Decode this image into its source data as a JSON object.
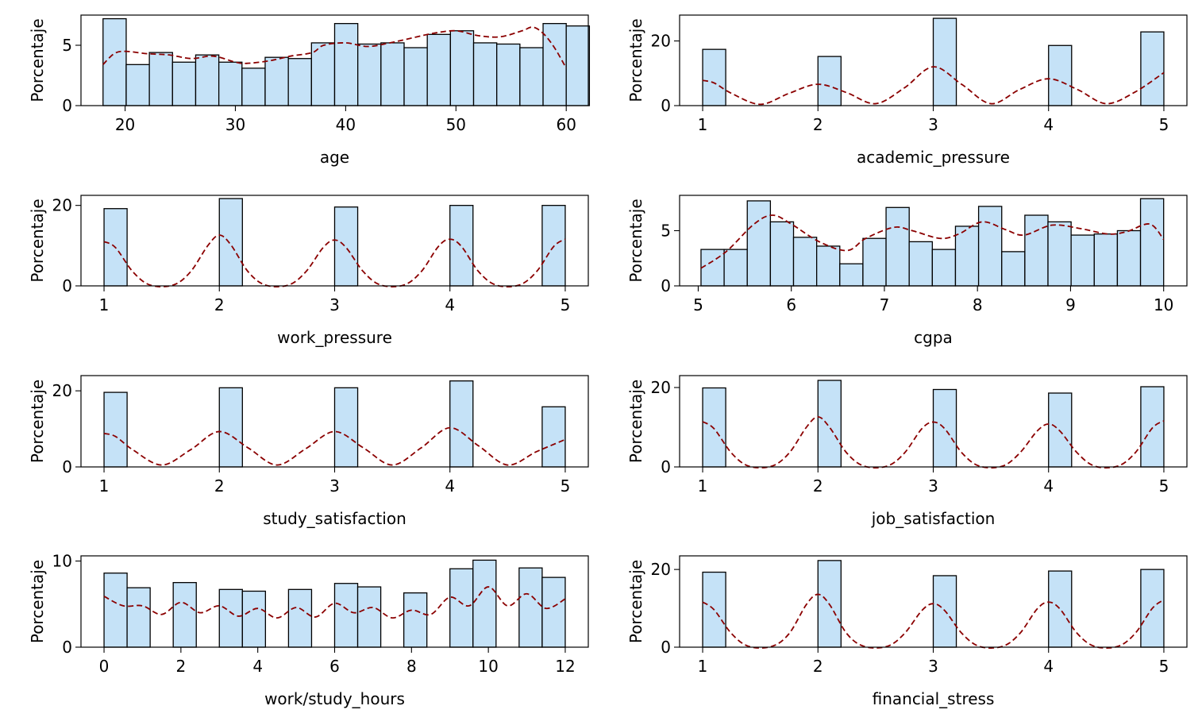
{
  "colors": {
    "bar_fill": "#c5e2f7",
    "bar_edge": "#000000",
    "kde": "#8b0000"
  },
  "chart_data": [
    {
      "type": "bar",
      "variable": "age",
      "xlabel": "age",
      "ylabel": "Porcentaje",
      "xlim": [
        16.0,
        62.0
      ],
      "ylim": [
        0,
        7.5
      ],
      "xticks": [
        20,
        30,
        40,
        50,
        60
      ],
      "yticks": [
        0,
        5
      ],
      "bin_start": 18,
      "bin_width": 2.1,
      "values": [
        7.2,
        3.4,
        4.4,
        3.6,
        4.2,
        3.6,
        3.1,
        4.0,
        3.9,
        5.2,
        6.8,
        5.1,
        5.2,
        4.8,
        5.9,
        6.2,
        5.2,
        5.1,
        4.8,
        6.8,
        6.6
      ],
      "kde": [
        [
          18,
          3.4
        ],
        [
          19,
          4.3
        ],
        [
          20,
          4.5
        ],
        [
          22,
          4.3
        ],
        [
          24,
          4.2
        ],
        [
          26,
          3.9
        ],
        [
          28,
          4.1
        ],
        [
          30,
          3.6
        ],
        [
          31,
          3.5
        ],
        [
          33,
          3.7
        ],
        [
          35,
          4.1
        ],
        [
          37,
          4.4
        ],
        [
          38,
          5.0
        ],
        [
          40,
          5.2
        ],
        [
          42,
          4.9
        ],
        [
          44,
          5.2
        ],
        [
          46,
          5.6
        ],
        [
          48,
          6.0
        ],
        [
          50,
          6.2
        ],
        [
          52,
          5.8
        ],
        [
          54,
          5.7
        ],
        [
          56,
          6.2
        ],
        [
          57,
          6.5
        ],
        [
          58,
          5.9
        ],
        [
          59,
          4.7
        ],
        [
          60,
          3.1
        ]
      ]
    },
    {
      "type": "bar",
      "variable": "academic_pressure",
      "xlabel": "academic_pressure",
      "ylabel": "Porcentaje",
      "xlim": [
        0.8,
        5.2
      ],
      "ylim": [
        0,
        28
      ],
      "xticks": [
        1,
        2,
        3,
        4,
        5
      ],
      "yticks": [
        0,
        20
      ],
      "bins": [
        {
          "x": 1,
          "value": 17.4
        },
        {
          "x": 2,
          "value": 15.2
        },
        {
          "x": 3,
          "value": 27.0
        },
        {
          "x": 4,
          "value": 18.6
        },
        {
          "x": 5,
          "value": 22.8
        }
      ],
      "bar_width": 0.2,
      "bar_align": "left-except-last",
      "kde": [
        [
          1,
          7.8
        ],
        [
          1.1,
          7.0
        ],
        [
          1.25,
          3.8
        ],
        [
          1.5,
          0.4
        ],
        [
          1.75,
          3.8
        ],
        [
          2,
          6.6
        ],
        [
          2.25,
          4.0
        ],
        [
          2.5,
          0.6
        ],
        [
          2.75,
          5.5
        ],
        [
          3,
          12.0
        ],
        [
          3.25,
          6.5
        ],
        [
          3.5,
          0.6
        ],
        [
          3.75,
          5.0
        ],
        [
          4,
          8.3
        ],
        [
          4.25,
          5.0
        ],
        [
          4.5,
          0.6
        ],
        [
          4.75,
          4.2
        ],
        [
          5,
          10.2
        ]
      ]
    },
    {
      "type": "bar",
      "variable": "work_pressure",
      "xlabel": "work_pressure",
      "ylabel": "Porcentaje",
      "xlim": [
        0.8,
        5.2
      ],
      "ylim": [
        0,
        22.5
      ],
      "xticks": [
        1,
        2,
        3,
        4,
        5
      ],
      "yticks": [
        0,
        20
      ],
      "bins": [
        {
          "x": 1,
          "value": 19.2
        },
        {
          "x": 2,
          "value": 21.7
        },
        {
          "x": 3,
          "value": 19.6
        },
        {
          "x": 4,
          "value": 20.0
        },
        {
          "x": 5,
          "value": 20.0
        }
      ],
      "bar_width": 0.2,
      "bar_align": "left-except-last",
      "kde": [
        [
          1,
          11.0
        ],
        [
          1.1,
          9.5
        ],
        [
          1.25,
          3.5
        ],
        [
          1.4,
          0.2
        ],
        [
          1.6,
          0.2
        ],
        [
          1.75,
          3.5
        ],
        [
          1.9,
          10.0
        ],
        [
          2,
          12.6
        ],
        [
          2.1,
          10.2
        ],
        [
          2.25,
          3.5
        ],
        [
          2.4,
          0.2
        ],
        [
          2.6,
          0.2
        ],
        [
          2.75,
          3.5
        ],
        [
          2.9,
          9.5
        ],
        [
          3,
          11.4
        ],
        [
          3.1,
          9.5
        ],
        [
          3.25,
          3.5
        ],
        [
          3.4,
          0.2
        ],
        [
          3.6,
          0.2
        ],
        [
          3.75,
          3.5
        ],
        [
          3.9,
          9.8
        ],
        [
          4,
          11.6
        ],
        [
          4.1,
          9.8
        ],
        [
          4.25,
          3.5
        ],
        [
          4.4,
          0.2
        ],
        [
          4.6,
          0.2
        ],
        [
          4.75,
          3.5
        ],
        [
          4.9,
          9.8
        ],
        [
          5,
          11.6
        ]
      ]
    },
    {
      "type": "bar",
      "variable": "cgpa",
      "xlabel": "cgpa",
      "ylabel": "Porcentaje",
      "xlim": [
        4.8,
        10.25
      ],
      "ylim": [
        0,
        8.2
      ],
      "xticks": [
        5,
        6,
        7,
        8,
        9,
        10
      ],
      "yticks": [
        0,
        5
      ],
      "bin_start": 5.03,
      "bin_width": 0.2485,
      "values": [
        3.3,
        3.3,
        7.7,
        5.8,
        4.4,
        3.6,
        2.0,
        4.3,
        7.1,
        4.0,
        3.3,
        5.4,
        7.2,
        3.1,
        6.4,
        5.8,
        4.6,
        4.7,
        5.0,
        7.9
      ],
      "kde": [
        [
          5.03,
          1.6
        ],
        [
          5.3,
          3.1
        ],
        [
          5.6,
          5.6
        ],
        [
          5.8,
          6.4
        ],
        [
          6.0,
          5.6
        ],
        [
          6.3,
          4.0
        ],
        [
          6.6,
          3.2
        ],
        [
          6.8,
          4.3
        ],
        [
          7.1,
          5.3
        ],
        [
          7.3,
          5.0
        ],
        [
          7.6,
          4.3
        ],
        [
          7.8,
          4.7
        ],
        [
          8.05,
          5.8
        ],
        [
          8.3,
          5.1
        ],
        [
          8.5,
          4.6
        ],
        [
          8.8,
          5.5
        ],
        [
          9.1,
          5.2
        ],
        [
          9.4,
          4.7
        ],
        [
          9.6,
          4.9
        ],
        [
          9.85,
          5.6
        ],
        [
          10.0,
          4.2
        ]
      ]
    },
    {
      "type": "bar",
      "variable": "study_satisfaction",
      "xlabel": "study_satisfaction",
      "ylabel": "Porcentaje",
      "xlim": [
        0.8,
        5.2
      ],
      "ylim": [
        0,
        24
      ],
      "xticks": [
        1,
        2,
        3,
        4,
        5
      ],
      "yticks": [
        0,
        20
      ],
      "bins": [
        {
          "x": 1,
          "value": 19.6
        },
        {
          "x": 2,
          "value": 20.8
        },
        {
          "x": 3,
          "value": 20.8
        },
        {
          "x": 4,
          "value": 22.6
        },
        {
          "x": 5,
          "value": 15.8
        }
      ],
      "bar_width": 0.2,
      "bar_align": "left-except-last",
      "kde": [
        [
          1,
          8.8
        ],
        [
          1.1,
          8.0
        ],
        [
          1.25,
          4.5
        ],
        [
          1.5,
          0.5
        ],
        [
          1.75,
          4.5
        ],
        [
          2,
          9.3
        ],
        [
          2.25,
          5.0
        ],
        [
          2.5,
          0.5
        ],
        [
          2.75,
          4.8
        ],
        [
          3,
          9.3
        ],
        [
          3.25,
          5.0
        ],
        [
          3.5,
          0.5
        ],
        [
          3.75,
          5.0
        ],
        [
          4,
          10.3
        ],
        [
          4.25,
          5.5
        ],
        [
          4.5,
          0.5
        ],
        [
          4.75,
          4.0
        ],
        [
          5,
          7.2
        ]
      ]
    },
    {
      "type": "bar",
      "variable": "job_satisfaction",
      "xlabel": "job_satisfaction",
      "ylabel": "Porcentaje",
      "xlim": [
        0.8,
        5.2
      ],
      "ylim": [
        0,
        23
      ],
      "xticks": [
        1,
        2,
        3,
        4,
        5
      ],
      "yticks": [
        0,
        20
      ],
      "bins": [
        {
          "x": 1,
          "value": 19.9
        },
        {
          "x": 2,
          "value": 21.8
        },
        {
          "x": 3,
          "value": 19.5
        },
        {
          "x": 4,
          "value": 18.6
        },
        {
          "x": 5,
          "value": 20.2
        }
      ],
      "bar_width": 0.2,
      "bar_align": "left-except-last",
      "kde": [
        [
          1,
          11.4
        ],
        [
          1.1,
          9.6
        ],
        [
          1.25,
          3.5
        ],
        [
          1.4,
          0.2
        ],
        [
          1.6,
          0.2
        ],
        [
          1.75,
          3.5
        ],
        [
          1.9,
          10.0
        ],
        [
          2,
          12.6
        ],
        [
          2.1,
          10.0
        ],
        [
          2.25,
          3.5
        ],
        [
          2.4,
          0.2
        ],
        [
          2.6,
          0.2
        ],
        [
          2.75,
          3.5
        ],
        [
          2.9,
          9.6
        ],
        [
          3,
          11.3
        ],
        [
          3.1,
          9.6
        ],
        [
          3.25,
          3.5
        ],
        [
          3.4,
          0.2
        ],
        [
          3.6,
          0.2
        ],
        [
          3.75,
          3.5
        ],
        [
          3.9,
          9.0
        ],
        [
          4,
          10.8
        ],
        [
          4.1,
          9.0
        ],
        [
          4.25,
          3.5
        ],
        [
          4.4,
          0.2
        ],
        [
          4.6,
          0.2
        ],
        [
          4.75,
          3.5
        ],
        [
          4.9,
          9.8
        ],
        [
          5,
          11.6
        ]
      ]
    },
    {
      "type": "bar",
      "variable": "work/study_hours",
      "xlabel": "work/study_hours",
      "ylabel": "Porcentaje",
      "xlim": [
        -0.6,
        12.6
      ],
      "ylim": [
        0,
        10.6
      ],
      "xticks": [
        0,
        2,
        4,
        6,
        8,
        10,
        12
      ],
      "yticks": [
        0,
        10
      ],
      "bins": [
        {
          "x": 0,
          "value": 8.6
        },
        {
          "x": 1,
          "value": 6.9
        },
        {
          "x": 2,
          "value": 7.5
        },
        {
          "x": 3,
          "value": 6.7
        },
        {
          "x": 4,
          "value": 6.5
        },
        {
          "x": 5,
          "value": 6.7
        },
        {
          "x": 6,
          "value": 7.4
        },
        {
          "x": 7,
          "value": 7.0
        },
        {
          "x": 8,
          "value": 6.3
        },
        {
          "x": 9,
          "value": 9.1
        },
        {
          "x": 10,
          "value": 10.1
        },
        {
          "x": 11,
          "value": 9.2
        },
        {
          "x": 12,
          "value": 8.1
        }
      ],
      "bin_edges": [
        0,
        0.6,
        1.2,
        1.8,
        2.4,
        3.0,
        3.6,
        4.2,
        4.8,
        5.4,
        6.0,
        6.6,
        7.2,
        7.8,
        8.4,
        9.0,
        9.6,
        10.2,
        10.8,
        11.4,
        12.0
      ],
      "bar_width": 0.6,
      "kde": [
        [
          0,
          5.9
        ],
        [
          0.5,
          4.8
        ],
        [
          1,
          4.8
        ],
        [
          1.5,
          3.8
        ],
        [
          2,
          5.2
        ],
        [
          2.5,
          4.0
        ],
        [
          3,
          4.8
        ],
        [
          3.5,
          3.6
        ],
        [
          4,
          4.5
        ],
        [
          4.5,
          3.4
        ],
        [
          5,
          4.6
        ],
        [
          5.5,
          3.5
        ],
        [
          6,
          5.1
        ],
        [
          6.5,
          4.0
        ],
        [
          7,
          4.6
        ],
        [
          7.5,
          3.4
        ],
        [
          8,
          4.3
        ],
        [
          8.5,
          3.8
        ],
        [
          9,
          5.8
        ],
        [
          9.5,
          4.8
        ],
        [
          10,
          7.0
        ],
        [
          10.5,
          4.8
        ],
        [
          11,
          6.2
        ],
        [
          11.5,
          4.5
        ],
        [
          12,
          5.6
        ]
      ]
    },
    {
      "type": "bar",
      "variable": "financial_stress",
      "xlabel": "financial_stress",
      "ylabel": "Porcentaje",
      "xlim": [
        0.8,
        5.2
      ],
      "ylim": [
        0,
        23.5
      ],
      "xticks": [
        1,
        2,
        3,
        4,
        5
      ],
      "yticks": [
        0,
        20
      ],
      "bins": [
        {
          "x": 1,
          "value": 19.3
        },
        {
          "x": 2,
          "value": 22.3
        },
        {
          "x": 3,
          "value": 18.4
        },
        {
          "x": 4,
          "value": 19.6
        },
        {
          "x": 5,
          "value": 20.0
        }
      ],
      "bar_width": 0.2,
      "bar_align": "left-except-last",
      "kde": [
        [
          1,
          11.6
        ],
        [
          1.1,
          9.6
        ],
        [
          1.25,
          3.5
        ],
        [
          1.4,
          0.2
        ],
        [
          1.6,
          0.2
        ],
        [
          1.75,
          3.5
        ],
        [
          1.9,
          11.0
        ],
        [
          2,
          13.6
        ],
        [
          2.1,
          11.0
        ],
        [
          2.25,
          3.5
        ],
        [
          2.4,
          0.2
        ],
        [
          2.6,
          0.2
        ],
        [
          2.75,
          3.5
        ],
        [
          2.9,
          9.4
        ],
        [
          3,
          11.2
        ],
        [
          3.1,
          9.4
        ],
        [
          3.25,
          3.5
        ],
        [
          3.4,
          0.2
        ],
        [
          3.6,
          0.2
        ],
        [
          3.75,
          3.5
        ],
        [
          3.9,
          9.8
        ],
        [
          4,
          11.6
        ],
        [
          4.1,
          9.8
        ],
        [
          4.25,
          3.5
        ],
        [
          4.4,
          0.2
        ],
        [
          4.6,
          0.2
        ],
        [
          4.75,
          3.5
        ],
        [
          4.9,
          10.0
        ],
        [
          5,
          12.2
        ]
      ]
    }
  ]
}
